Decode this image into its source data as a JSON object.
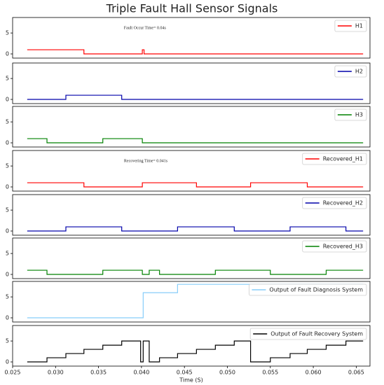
{
  "chart_data": [
    {
      "type": "line",
      "drawstyle": "steps-post",
      "title": "Triple Fault Hall Sensor Signals",
      "annotation": "Fault Occur Time= 0.04s",
      "annotation_x": 0.0404,
      "legend": "upper right",
      "xlim": [
        0.025,
        0.0666
      ],
      "ylim": [
        -1,
        8.7
      ],
      "yticks": [
        0,
        5
      ],
      "series": [
        {
          "name": "H1",
          "color": "#ff0000",
          "x": [
            0.0267,
            0.0333,
            0.0401,
            0.0403,
            0.0658
          ],
          "values": [
            1,
            0,
            1,
            0,
            0
          ]
        }
      ]
    },
    {
      "type": "line",
      "drawstyle": "steps-post",
      "legend": "upper right",
      "xlim": [
        0.025,
        0.0666
      ],
      "ylim": [
        -1,
        8.7
      ],
      "yticks": [
        0,
        5
      ],
      "series": [
        {
          "name": "H2",
          "color": "#0000aa",
          "x": [
            0.0267,
            0.0312,
            0.0377,
            0.0658
          ],
          "values": [
            0,
            1,
            0,
            0
          ]
        }
      ]
    },
    {
      "type": "line",
      "drawstyle": "steps-post",
      "legend": "upper right",
      "xlim": [
        0.025,
        0.0666
      ],
      "ylim": [
        -1,
        8.7
      ],
      "yticks": [
        0,
        5
      ],
      "series": [
        {
          "name": "H3",
          "color": "#008000",
          "x": [
            0.0267,
            0.029,
            0.0355,
            0.0401,
            0.0658
          ],
          "values": [
            1,
            0,
            1,
            0,
            0
          ]
        }
      ]
    },
    {
      "type": "line",
      "drawstyle": "steps-post",
      "annotation": "Recovering Time= 0.041s",
      "annotation_x": 0.0405,
      "legend": "upper right",
      "xlim": [
        0.025,
        0.0666
      ],
      "ylim": [
        -1,
        8.7
      ],
      "yticks": [
        0,
        5
      ],
      "series": [
        {
          "name": "Recovered_H1",
          "color": "#ff0000",
          "x": [
            0.0267,
            0.0333,
            0.0401,
            0.0464,
            0.0527,
            0.0593,
            0.0658
          ],
          "values": [
            1,
            0,
            1,
            0,
            1,
            0,
            0
          ]
        }
      ]
    },
    {
      "type": "line",
      "drawstyle": "steps-post",
      "legend": "upper right",
      "xlim": [
        0.025,
        0.0666
      ],
      "ylim": [
        -1,
        8.7
      ],
      "yticks": [
        0,
        5
      ],
      "series": [
        {
          "name": "Recovered_H2",
          "color": "#0000aa",
          "x": [
            0.0267,
            0.0312,
            0.0377,
            0.0442,
            0.0508,
            0.0573,
            0.0638,
            0.0658
          ],
          "values": [
            0,
            1,
            0,
            1,
            0,
            1,
            0,
            0
          ]
        }
      ]
    },
    {
      "type": "line",
      "drawstyle": "steps-post",
      "legend": "upper right",
      "xlim": [
        0.025,
        0.0666
      ],
      "ylim": [
        -1,
        8.7
      ],
      "yticks": [
        0,
        5
      ],
      "series": [
        {
          "name": "Recovered_H3",
          "color": "#008000",
          "x": [
            0.0267,
            0.029,
            0.0355,
            0.0401,
            0.0409,
            0.0421,
            0.0486,
            0.055,
            0.0615,
            0.0658
          ],
          "values": [
            1,
            0,
            1,
            0,
            1,
            0,
            1,
            0,
            1,
            1
          ]
        }
      ]
    },
    {
      "type": "line",
      "drawstyle": "steps-post",
      "legend": "upper right",
      "xlim": [
        0.025,
        0.0666
      ],
      "ylim": [
        -1,
        8.7
      ],
      "yticks": [
        0,
        5
      ],
      "series": [
        {
          "name": "Output of Fault Diagnosis System",
          "color": "#87cefa",
          "x": [
            0.0267,
            0.0402,
            0.0442,
            0.0658
          ],
          "values": [
            0,
            6,
            8,
            8
          ]
        }
      ]
    },
    {
      "type": "line",
      "drawstyle": "steps-post",
      "legend": "upper right",
      "xlabel": "Time (S)",
      "xlim": [
        0.025,
        0.0666
      ],
      "ylim": [
        -1,
        8.7
      ],
      "yticks": [
        0,
        5
      ],
      "xticks": [
        0.025,
        {
          "value": 0.03,
          "label": "0.030"
        },
        0.035,
        {
          "value": 0.04,
          "label": "0.040"
        },
        0.045,
        {
          "value": 0.05,
          "label": "0.050"
        },
        0.055,
        {
          "value": 0.06,
          "label": "0.060"
        },
        0.065
      ],
      "series": [
        {
          "name": "Output of Fault Recovery System",
          "color": "#000000",
          "x": [
            0.0267,
            0.029,
            0.0312,
            0.0333,
            0.0355,
            0.0377,
            0.0399,
            0.0402,
            0.0409,
            0.0421,
            0.0442,
            0.0464,
            0.0486,
            0.0508,
            0.0527,
            0.055,
            0.0573,
            0.0593,
            0.0615,
            0.0638,
            0.0658
          ],
          "values": [
            0,
            1,
            2,
            3,
            4,
            5,
            0,
            5,
            0,
            1,
            2,
            3,
            4,
            5,
            0,
            1,
            2,
            3,
            4,
            5,
            5
          ]
        }
      ]
    }
  ]
}
